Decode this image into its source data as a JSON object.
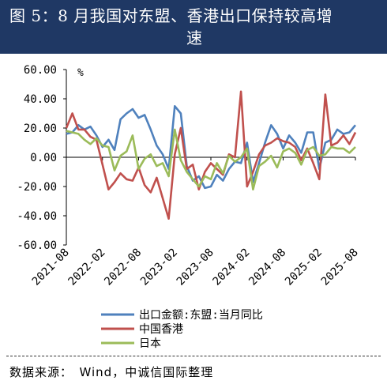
{
  "header": {
    "title_line1": "图 5：8 月我国对东盟、香港出口保持较高增",
    "title_line2": "速"
  },
  "source": "数据来源：　Wind，中诚信国际整理",
  "chart_data": {
    "type": "line",
    "ylabel": "%",
    "ylim": [
      -60,
      60
    ],
    "yticks": [
      "60.00",
      "40.00",
      "20.00",
      "0.00",
      "-20.00",
      "-40.00",
      "-60.00"
    ],
    "ytick_values": [
      60,
      40,
      20,
      0,
      -20,
      -40,
      -60
    ],
    "xtick_labels": [
      "2021-08",
      "2022-02",
      "2022-08",
      "2023-02",
      "2023-08",
      "2024-02",
      "2024-08",
      "2025-02",
      "2025-08"
    ],
    "x": [
      "2021-08",
      "2021-09",
      "2021-10",
      "2021-11",
      "2021-12",
      "2022-01",
      "2022-02",
      "2022-03",
      "2022-04",
      "2022-05",
      "2022-06",
      "2022-07",
      "2022-08",
      "2022-09",
      "2022-10",
      "2022-11",
      "2022-12",
      "2023-01",
      "2023-02",
      "2023-03",
      "2023-04",
      "2023-05",
      "2023-06",
      "2023-07",
      "2023-08",
      "2023-09",
      "2023-10",
      "2023-11",
      "2023-12",
      "2024-01",
      "2024-02",
      "2024-03",
      "2024-04",
      "2024-05",
      "2024-06",
      "2024-07",
      "2024-08",
      "2024-09",
      "2024-10",
      "2024-11",
      "2024-12",
      "2025-01",
      "2025-02",
      "2025-03",
      "2025-04",
      "2025-05",
      "2025-06",
      "2025-07",
      "2025-08"
    ],
    "legend_position": "bottom",
    "series": [
      {
        "name": "出口金额:东盟:当月同比",
        "color": "#4f81bd",
        "values": [
          16,
          17,
          22,
          19,
          21,
          15,
          7,
          12,
          5,
          26,
          30,
          33,
          27,
          29,
          19,
          8,
          2,
          -8,
          35,
          30,
          -6,
          -16,
          -13,
          -21,
          -20,
          -12,
          -16,
          -8,
          -3,
          -4,
          10,
          -17,
          -4,
          10,
          22,
          16,
          6,
          15,
          10,
          3,
          17,
          17,
          -8,
          10,
          12,
          19,
          16,
          17,
          22
        ]
      },
      {
        "name": "中国香港",
        "color": "#c0504d",
        "values": [
          20,
          30,
          19,
          19,
          14,
          12,
          -5,
          -22,
          -17,
          -11,
          -15,
          -16,
          -7,
          -19,
          -24,
          -14,
          -28,
          -42,
          2,
          20,
          -8,
          -5,
          -22,
          -10,
          -4,
          -8,
          -12,
          2,
          0,
          45,
          -20,
          -10,
          2,
          8,
          10,
          13,
          11,
          10,
          7,
          -2,
          6,
          -4,
          -15,
          43,
          8,
          10,
          15,
          9,
          17
        ]
      },
      {
        "name": "日本",
        "color": "#9bbb59",
        "values": [
          18,
          17,
          16,
          12,
          9,
          13,
          8,
          7,
          -9,
          1,
          4,
          15,
          -8,
          -1,
          2,
          -6,
          -4,
          -13,
          19,
          -2,
          -10,
          -15,
          -20,
          -13,
          -15,
          -4,
          -11,
          1,
          -3,
          0,
          6,
          -22,
          -6,
          -3,
          1,
          -7,
          4,
          6,
          3,
          -5,
          5,
          7,
          1,
          2,
          7,
          6,
          6,
          3,
          7
        ]
      }
    ]
  }
}
